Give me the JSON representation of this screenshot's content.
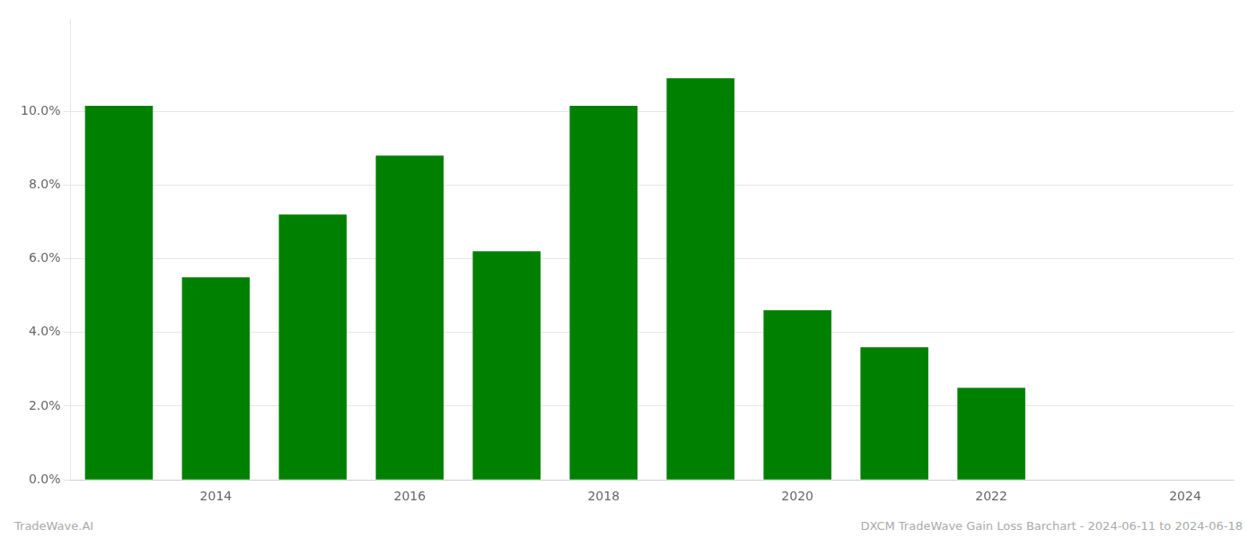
{
  "chart_data": {
    "type": "bar",
    "x": [
      2013,
      2014,
      2015,
      2016,
      2017,
      2018,
      2019,
      2020,
      2021,
      2022,
      2023
    ],
    "values": [
      0.1015,
      0.055,
      0.072,
      0.088,
      0.062,
      0.1015,
      0.109,
      0.046,
      0.036,
      0.025,
      0.0
    ],
    "color": "#008000",
    "xlim": [
      2012.5,
      2024.5
    ],
    "xticks": [
      2014,
      2016,
      2018,
      2020,
      2022,
      2024
    ],
    "ylim": [
      0,
      0.125
    ],
    "yticks": [
      {
        "value": 0.0,
        "label": "0.0%"
      },
      {
        "value": 0.02,
        "label": "2.0%"
      },
      {
        "value": 0.04,
        "label": "4.0%"
      },
      {
        "value": 0.06,
        "label": "6.0%"
      },
      {
        "value": 0.08,
        "label": "8.0%"
      },
      {
        "value": 0.1,
        "label": "10.0%"
      }
    ],
    "grid": true,
    "annotations": [
      "TradeWave.AI",
      "DXCM TradeWave Gain Loss Barchart - 2024-06-11 to 2024-06-18"
    ]
  }
}
